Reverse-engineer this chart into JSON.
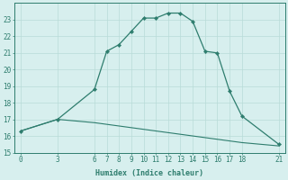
{
  "line1_x": [
    0,
    3,
    6,
    7,
    8,
    9,
    10,
    11,
    12,
    13,
    14,
    15,
    16,
    17,
    18,
    21
  ],
  "line1_y": [
    16.3,
    17.0,
    18.8,
    21.1,
    21.5,
    22.3,
    23.1,
    23.1,
    23.4,
    23.4,
    22.9,
    21.1,
    21.0,
    18.7,
    17.2,
    15.5
  ],
  "line2_x": [
    0,
    3,
    6,
    7,
    8,
    9,
    10,
    11,
    12,
    13,
    14,
    15,
    16,
    17,
    18,
    21
  ],
  "line2_y": [
    16.3,
    17.0,
    16.8,
    16.7,
    16.6,
    16.5,
    16.4,
    16.3,
    16.2,
    16.1,
    16.0,
    15.9,
    15.8,
    15.7,
    15.6,
    15.4
  ],
  "line_color": "#2e7d6e",
  "bg_color": "#d7efee",
  "grid_color": "#b8dbd8",
  "xlabel": "Humidex (Indice chaleur)",
  "ylim": [
    15,
    24
  ],
  "xlim": [
    -0.5,
    21.5
  ],
  "xticks": [
    0,
    3,
    6,
    7,
    8,
    9,
    10,
    11,
    12,
    13,
    14,
    15,
    16,
    17,
    18,
    21
  ],
  "yticks": [
    15,
    16,
    17,
    18,
    19,
    20,
    21,
    22,
    23
  ],
  "tick_fontsize": 5.5,
  "xlabel_fontsize": 6.0
}
